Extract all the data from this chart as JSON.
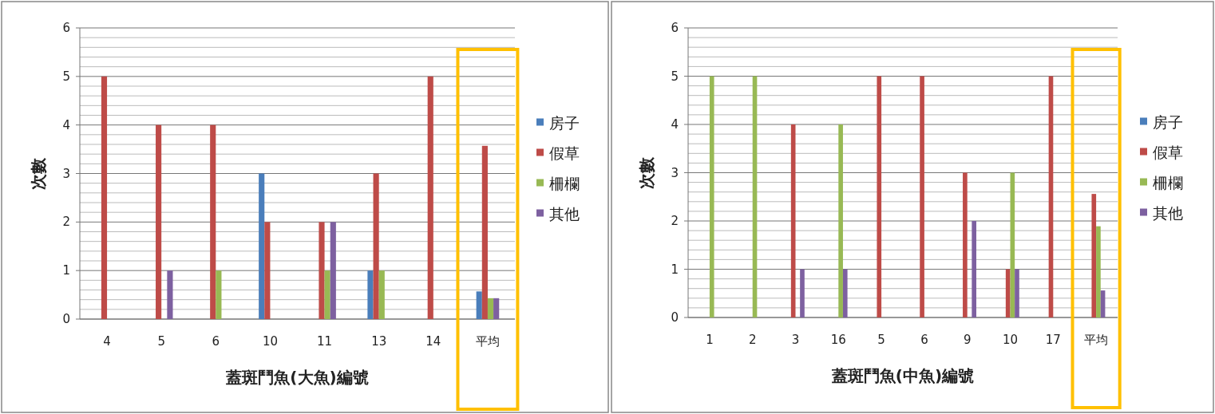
{
  "chart_data": [
    {
      "type": "bar",
      "xlabel": "蓋斑鬥魚(大魚)編號",
      "ylabel": "次數",
      "categories": [
        "4",
        "5",
        "6",
        "10",
        "11",
        "13",
        "14",
        "平均"
      ],
      "ylim": [
        0,
        6
      ],
      "yticks": [
        0,
        1,
        2,
        3,
        4,
        5,
        6
      ],
      "grid": "y",
      "legend": "right",
      "series": [
        {
          "name": "房子",
          "color": "#4a7ebb",
          "values": [
            0,
            0,
            0,
            3,
            0,
            1,
            0,
            0.57
          ]
        },
        {
          "name": "假草",
          "color": "#be4b48",
          "values": [
            5,
            4,
            4,
            2,
            2,
            3,
            5,
            3.57
          ]
        },
        {
          "name": "柵欄",
          "color": "#98b954",
          "values": [
            0,
            0,
            1,
            0,
            1,
            1,
            0,
            0.43
          ]
        },
        {
          "name": "其他",
          "color": "#7d60a0",
          "values": [
            0,
            1,
            0,
            0,
            2,
            0,
            0,
            0.43
          ]
        }
      ]
    },
    {
      "type": "bar",
      "xlabel": "蓋斑鬥魚(中魚)編號",
      "ylabel": "次數",
      "categories": [
        "1",
        "2",
        "3",
        "16",
        "5",
        "6",
        "9",
        "10",
        "17",
        "平均"
      ],
      "ylim": [
        0,
        6
      ],
      "yticks": [
        0,
        1,
        2,
        3,
        4,
        5,
        6
      ],
      "grid": "y",
      "legend": "right",
      "series": [
        {
          "name": "房子",
          "color": "#4a7ebb",
          "values": [
            0,
            0,
            0,
            0,
            0,
            0,
            0,
            0,
            0,
            0
          ]
        },
        {
          "name": "假草",
          "color": "#be4b48",
          "values": [
            0,
            0,
            4,
            0,
            5,
            5,
            3,
            1,
            5,
            2.56
          ]
        },
        {
          "name": "柵欄",
          "color": "#98b954",
          "values": [
            5,
            5,
            0,
            4,
            0,
            0,
            0,
            3,
            0,
            1.89
          ]
        },
        {
          "name": "其他",
          "color": "#7d60a0",
          "values": [
            0,
            0,
            1,
            1,
            0,
            0,
            2,
            1,
            0,
            0.56
          ]
        }
      ]
    }
  ]
}
